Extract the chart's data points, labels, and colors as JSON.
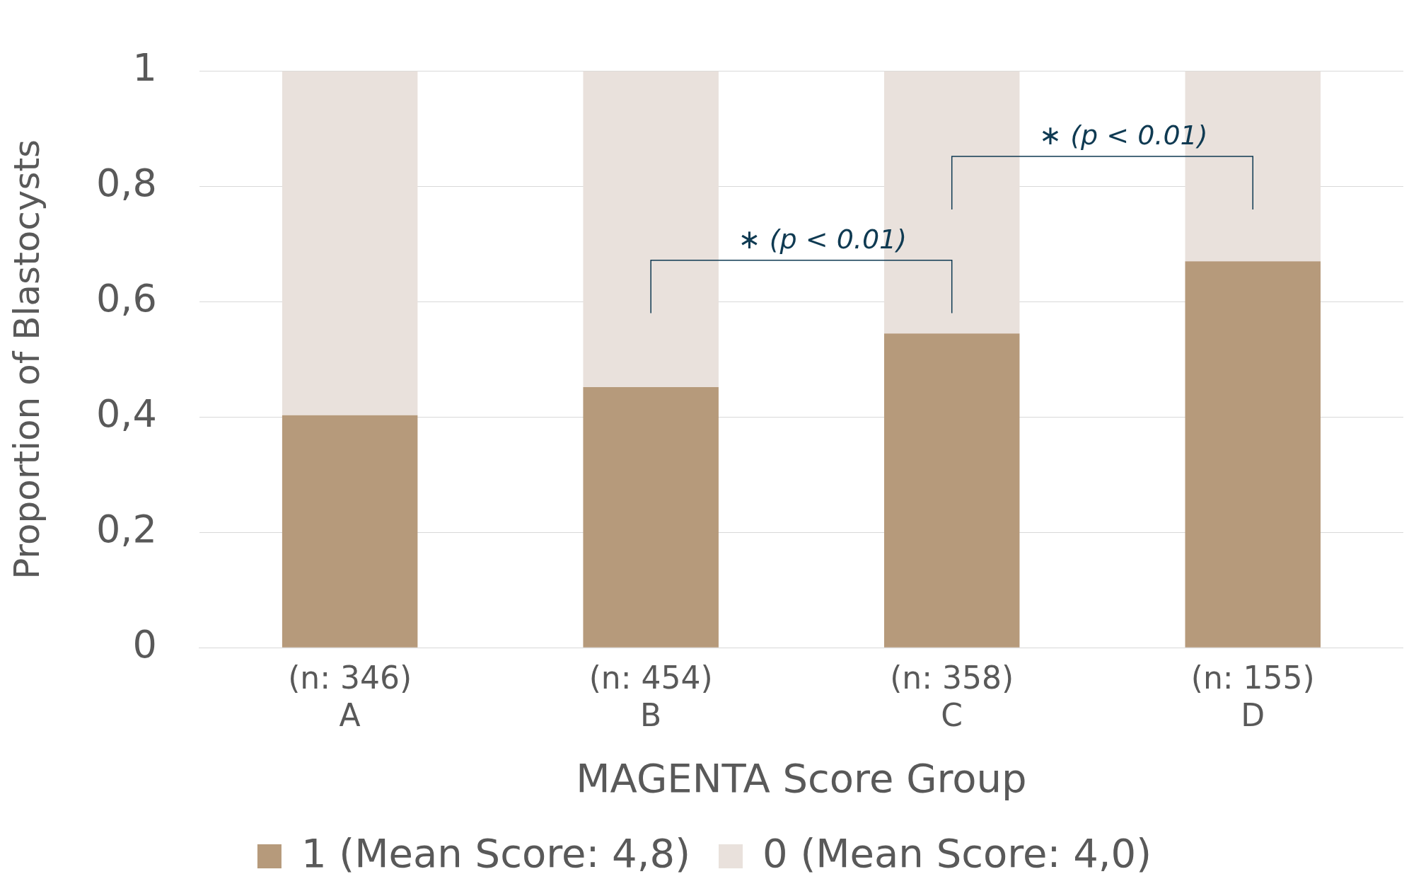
{
  "chart_data": {
    "type": "bar",
    "stacked": true,
    "xlabel": "MAGENTA Score Group",
    "ylabel": "Proportion of Blastocysts",
    "categories": [
      "(n: 346)\nA",
      "(n: 454)\nB",
      "(n: 358)\nC",
      "(n: 155)\nD"
    ],
    "series": [
      {
        "name": "1 (Mean Score: 4,8)",
        "color": "#b69a7b",
        "values": [
          0.403,
          0.452,
          0.545,
          0.67
        ]
      },
      {
        "name": "0 (Mean Score: 4,0)",
        "color": "#e9e1dc",
        "values": [
          0.597,
          0.548,
          0.455,
          0.33
        ]
      }
    ],
    "ylim": [
      0,
      1
    ],
    "yticks": [
      0,
      {
        "value": 0.2,
        "label": "0,2"
      },
      {
        "value": 0.4,
        "label": "0,4"
      },
      {
        "value": 0.6,
        "label": "0,6"
      },
      {
        "value": 0.8,
        "label": "0,8"
      },
      1
    ],
    "grid": "y",
    "legend": "bottom",
    "annotations": [
      "∗ (p < 0.01)",
      "∗ (p < 0.01)"
    ]
  }
}
